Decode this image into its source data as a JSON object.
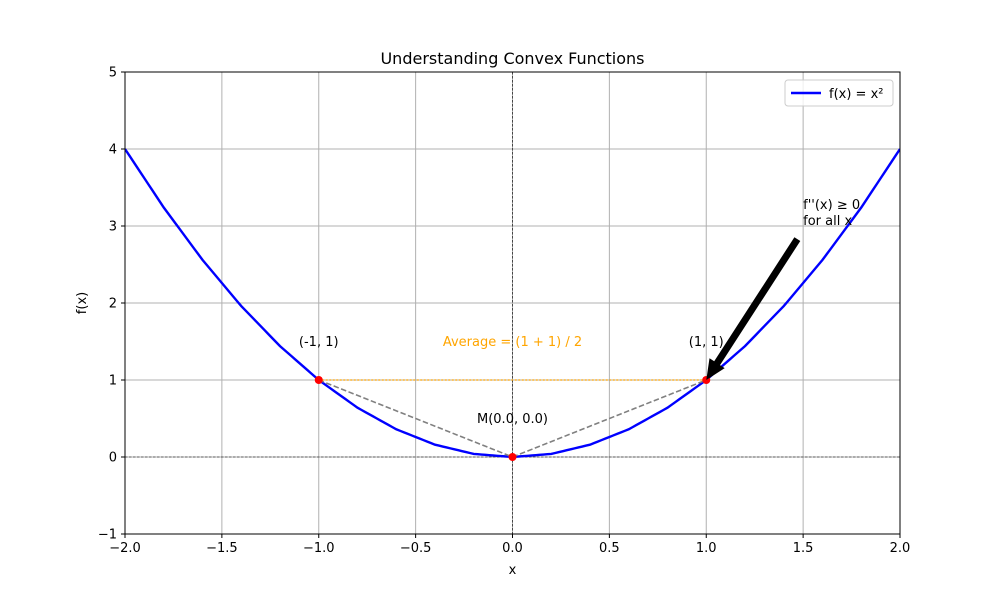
{
  "chart_data": {
    "type": "line",
    "title": "Understanding Convex Functions",
    "xlabel": "x",
    "ylabel": "f(x)",
    "xlim": [
      -2,
      2
    ],
    "ylim": [
      -1,
      5
    ],
    "xticks": [
      -2.0,
      -1.5,
      -1.0,
      -0.5,
      0.0,
      0.5,
      1.0,
      1.5,
      2.0
    ],
    "xtick_labels": [
      "−2.0",
      "−1.5",
      "−1.0",
      "−0.5",
      "0.0",
      "0.5",
      "1.0",
      "1.5",
      "2.0"
    ],
    "yticks": [
      -1,
      0,
      1,
      2,
      3,
      4,
      5
    ],
    "ytick_labels": [
      "−1",
      "0",
      "1",
      "2",
      "3",
      "4",
      "5"
    ],
    "grid": true,
    "legend_position": "top-right",
    "series": [
      {
        "name": "f(x) = x²",
        "color": "#0000ff",
        "x": [
          -2.0,
          -1.8,
          -1.6,
          -1.4,
          -1.2,
          -1.0,
          -0.8,
          -0.6,
          -0.4,
          -0.2,
          0.0,
          0.2,
          0.4,
          0.6,
          0.8,
          1.0,
          1.2,
          1.4,
          1.6,
          1.8,
          2.0
        ],
        "y": [
          4.0,
          3.24,
          2.56,
          1.96,
          1.44,
          1.0,
          0.64,
          0.36,
          0.16,
          0.04,
          0.0,
          0.04,
          0.16,
          0.36,
          0.64,
          1.0,
          1.44,
          1.96,
          2.56,
          3.24,
          4.0
        ]
      }
    ],
    "points": [
      {
        "x": -1,
        "y": 1,
        "label": "(-1, 1)",
        "label_x": -1,
        "label_y": 1.5
      },
      {
        "x": 0,
        "y": 0,
        "label": "M(0.0, 0.0)",
        "label_x": 0,
        "label_y": 0.5
      },
      {
        "x": 1,
        "y": 1,
        "label": "(1, 1)",
        "label_x": 1,
        "label_y": 1.5
      }
    ],
    "point_color": "#ff0000",
    "average_line": {
      "x": [
        -1,
        1
      ],
      "y": [
        1,
        1
      ],
      "color": "#ffa500",
      "label": "Average = (1 + 1) / 2",
      "label_x": 0,
      "label_y": 1.5
    },
    "chord_lines": [
      {
        "x": [
          -1,
          0
        ],
        "y": [
          1,
          0
        ]
      },
      {
        "x": [
          0,
          1
        ],
        "y": [
          0,
          1
        ]
      }
    ],
    "chord_color": "#808080",
    "arrow_annotation": {
      "text_lines": [
        "f''(x) ≥ 0",
        "for all x"
      ],
      "text_x": 1.5,
      "text_y": 3.0,
      "from": [
        1.47,
        2.83
      ],
      "to": [
        1.0,
        1.0
      ]
    }
  }
}
